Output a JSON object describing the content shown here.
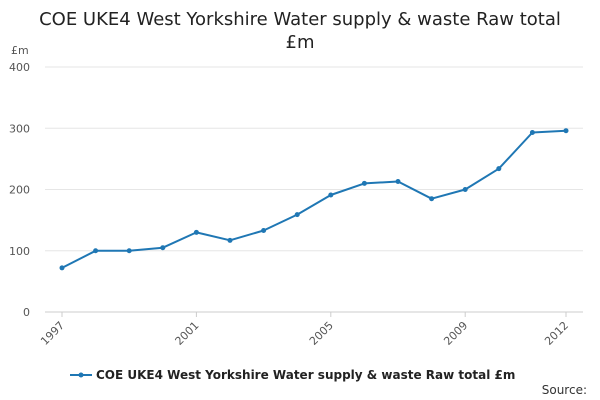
{
  "chart_data": {
    "type": "line",
    "title_line1": "COE UKE4 West Yorkshire Water supply & waste Raw total",
    "title_line2": "£m",
    "ylabel": "£m",
    "x": [
      1997,
      1998,
      1999,
      2000,
      2001,
      2002,
      2003,
      2004,
      2005,
      2006,
      2007,
      2008,
      2009,
      2010,
      2011,
      2012
    ],
    "x_tick_labels": [
      "1997",
      "2001",
      "2005",
      "2009",
      "2012"
    ],
    "y_ticks": [
      0,
      100,
      200,
      300,
      400
    ],
    "ylim": [
      0,
      400
    ],
    "series": [
      {
        "name": "COE UKE4 West Yorkshire Water supply & waste Raw total £m",
        "color": "#1f77b4",
        "values": [
          72,
          100,
          100,
          105,
          130,
          117,
          133,
          159,
          191,
          210,
          213,
          185,
          200,
          234,
          293,
          296
        ]
      }
    ],
    "grid": "horizontal",
    "legend_position": "bottom"
  },
  "footer": {
    "source_label": "Source:"
  }
}
